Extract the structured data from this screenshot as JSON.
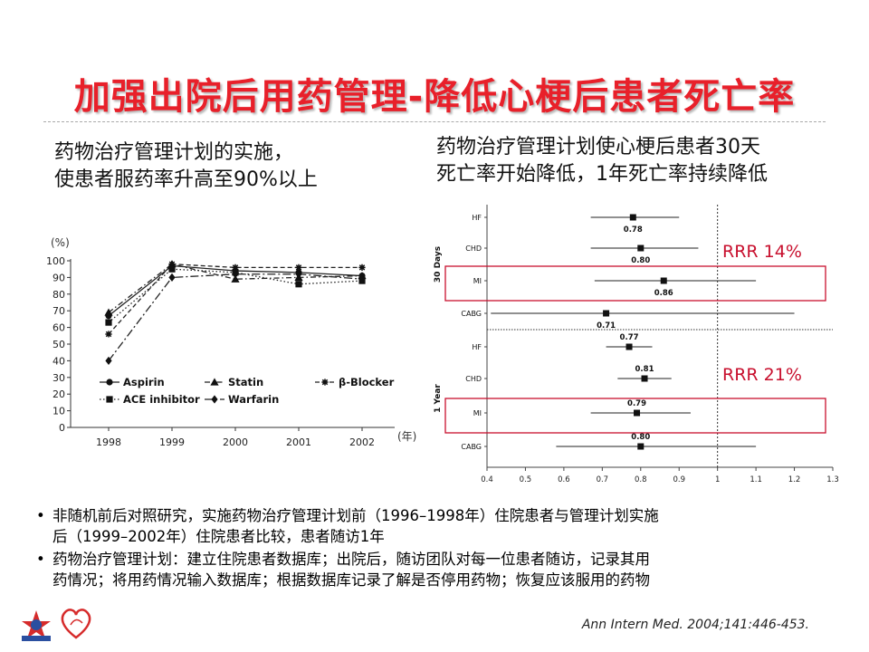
{
  "slide": {
    "title": "加强出院后用药管理-降低心梗后患者死亡率",
    "left_heading": [
      "药物治疗管理计划的实施，",
      "使患者服药率升高至90%以上"
    ],
    "right_heading": [
      "药物治疗管理计划使心梗后患者30天",
      "死亡率开始降低，1年死亡率持续降低"
    ],
    "bullets": [
      [
        "非随机前后对照研究，实施药物治疗管理计划前（1996–1998年）住院患者与管理计划实施",
        "后（1999–2002年）住院患者比较，患者随访1年"
      ],
      [
        "药物治疗管理计划：建立住院患者数据库；出院后，随访团队对每一位患者随访，记录其用",
        "药情况；将用药情况输入数据库；根据数据库记录了解是否停用药物；恢复应该服用的药物"
      ]
    ],
    "citation": "Ann Intern Med. 2004;141:446-453."
  },
  "chart_data": [
    {
      "type": "line",
      "ylabel": "(%)",
      "xlabel": "(年)",
      "x": [
        "1998",
        "1999",
        "2000",
        "2001",
        "2002"
      ],
      "ylim": [
        0,
        100
      ],
      "yticks": [
        0,
        10,
        20,
        30,
        40,
        50,
        60,
        70,
        80,
        90,
        100
      ],
      "legend_position": "lower-center",
      "series": [
        {
          "name": "Aspirin",
          "marker": "circle",
          "dash": "solid",
          "values": [
            67,
            97,
            94,
            93,
            91
          ]
        },
        {
          "name": "Statin",
          "marker": "triangle",
          "dash": "dashdot",
          "values": [
            69,
            98,
            89,
            90,
            91
          ]
        },
        {
          "name": "β-Blocker",
          "marker": "star",
          "dash": "dash",
          "values": [
            56,
            98,
            96,
            96,
            96
          ]
        },
        {
          "name": "ACE inhibitor",
          "marker": "square",
          "dash": "dot",
          "values": [
            63,
            95,
            93,
            86,
            88
          ]
        },
        {
          "name": "Warfarin",
          "marker": "diamond",
          "dash": "longdash",
          "values": [
            40,
            90,
            92,
            92,
            89
          ]
        }
      ]
    },
    {
      "type": "forest",
      "xlim": [
        0.4,
        1.3
      ],
      "xticks": [
        0.4,
        0.5,
        0.6,
        0.7,
        0.8,
        0.9,
        1.0,
        1.1,
        1.2,
        1.3
      ],
      "reference_line": 1.0,
      "groups": [
        {
          "label": "30 Days",
          "annotation": "RRR 14%",
          "rows": [
            {
              "label": "HF",
              "estimate": 0.78,
              "lower": 0.67,
              "upper": 0.9,
              "value_label": "0.78"
            },
            {
              "label": "CHD",
              "estimate": 0.8,
              "lower": 0.67,
              "upper": 0.95,
              "value_label": "0.80"
            },
            {
              "label": "MI",
              "estimate": 0.86,
              "lower": 0.68,
              "upper": 1.1,
              "value_label": "0.86",
              "highlight": true
            },
            {
              "label": "CABG",
              "estimate": 0.71,
              "lower": 0.41,
              "upper": 1.2,
              "value_label": "0.71"
            }
          ]
        },
        {
          "label": "1 Year",
          "annotation": "RRR 21%",
          "rows": [
            {
              "label": "HF",
              "estimate": 0.77,
              "lower": 0.71,
              "upper": 0.83,
              "value_label": "0.77"
            },
            {
              "label": "CHD",
              "estimate": 0.81,
              "lower": 0.74,
              "upper": 0.88,
              "value_label": "0.81"
            },
            {
              "label": "MI",
              "estimate": 0.79,
              "lower": 0.67,
              "upper": 0.93,
              "value_label": "0.79",
              "highlight": true
            },
            {
              "label": "CABG",
              "estimate": 0.8,
              "lower": 0.58,
              "upper": 1.1,
              "value_label": "0.80"
            }
          ]
        }
      ]
    }
  ]
}
